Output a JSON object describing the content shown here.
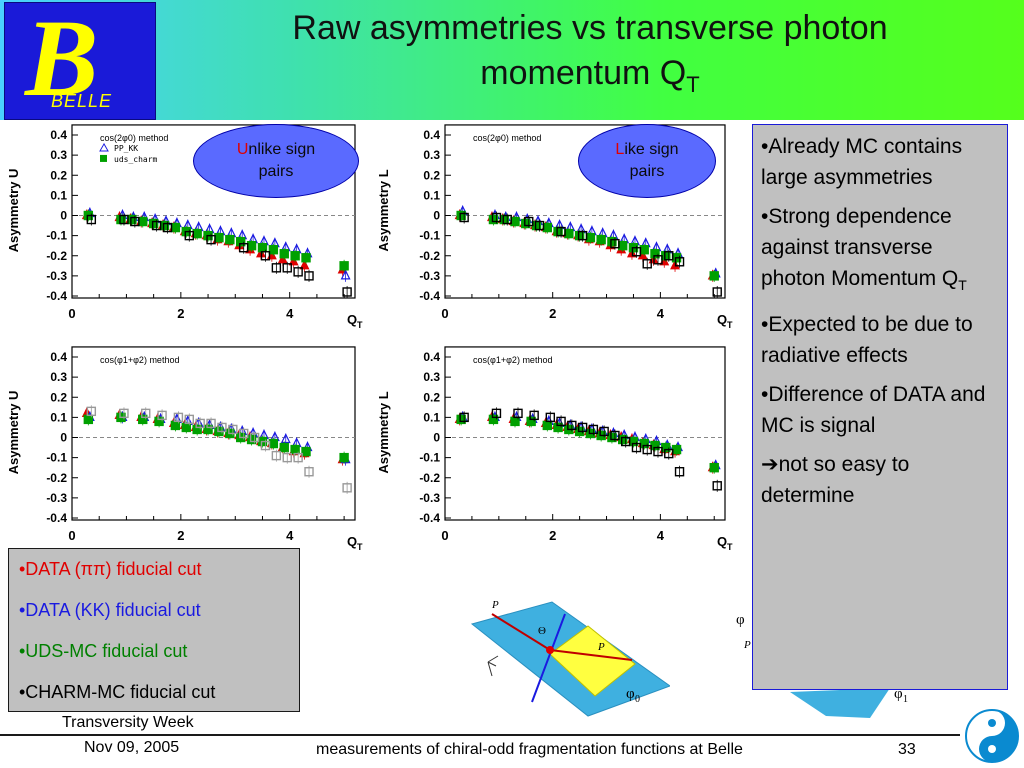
{
  "header": {
    "logo_text": "BELLE",
    "title_line1": "Raw asymmetries vs transverse photon",
    "title_line2": "momentum Q",
    "title_sub": "T"
  },
  "bubbles": {
    "unlike": {
      "first": "U",
      "rest_line1": "nlike sign",
      "line2": "pairs"
    },
    "like": {
      "first": "L",
      "rest_line1": "ike sign",
      "line2": "pairs"
    }
  },
  "right_box": {
    "bullets": [
      "•Already MC contains large asymmetries",
      "•Strong dependence against transverse photon Momentum Q",
      "•Expected to be due to radiative effects",
      "•Difference of DATA and MC is signal",
      "not so easy to determine"
    ],
    "qt_sub": "T",
    "arrow": "➔"
  },
  "legend_box": {
    "items": [
      {
        "label": "•DATA (ππ)   fiducial cut",
        "color": "#e00000"
      },
      {
        "label": "•DATA (KK)  fiducial cut",
        "color": "#1a1ae0"
      },
      {
        "label": "•UDS-MC      fiducial cut",
        "color": "#008000"
      },
      {
        "label": "•CHARM-MC fiducial cut",
        "color": "#000000"
      }
    ]
  },
  "footer": {
    "conference": "Transversity Week",
    "date": "Nov 09, 2005",
    "talk": "measurements of chiral-odd fragmentation functions at Belle",
    "page": "33"
  },
  "diagram": {
    "p_h2": "P",
    "p_h1": "P",
    "theta": "Θ",
    "phi0": "φ",
    "phi0_sub": "0",
    "phi1": "φ",
    "phi1_sub": "1",
    "phi2_partial": "φ",
    "p_partial": "P"
  },
  "colors": {
    "data_pipi": "#e00000",
    "data_kk": "#1a1ae0",
    "uds_mc": "#00a000",
    "charm_mc": "#000000"
  },
  "chart_data": [
    {
      "type": "scatter",
      "annotation": "cos(2φ0) method",
      "legend": [
        "PP_KK",
        "uds_charm"
      ],
      "xlabel": "Q",
      "xlabel_sub": "T",
      "ylabel": "Asymmetry U",
      "xlim": [
        0,
        5.2
      ],
      "ylim": [
        -0.4,
        0.45
      ],
      "xticks": [
        0,
        2,
        4
      ],
      "yticks": [
        0.4,
        0.3,
        0.2,
        0.1,
        0,
        -0.1,
        -0.2,
        -0.3,
        -0.4
      ],
      "series": [
        {
          "name": "DATA ππ",
          "marker": "triangle-filled",
          "color": "#e00000",
          "x": [
            0.3,
            0.9,
            1.1,
            1.3,
            1.5,
            1.7,
            1.9,
            2.1,
            2.3,
            2.5,
            2.7,
            2.9,
            3.1,
            3.3,
            3.5,
            3.7,
            3.9,
            4.1,
            4.3,
            5.0
          ],
          "y": [
            0.0,
            -0.01,
            -0.02,
            -0.03,
            -0.04,
            -0.05,
            -0.06,
            -0.08,
            -0.09,
            -0.1,
            -0.12,
            -0.13,
            -0.15,
            -0.17,
            -0.19,
            -0.2,
            -0.22,
            -0.23,
            -0.25,
            -0.27
          ]
        },
        {
          "name": "DATA KK",
          "marker": "triangle-open",
          "color": "#1a1ae0",
          "x": [
            0.3,
            0.9,
            1.1,
            1.3,
            1.5,
            1.7,
            1.9,
            2.1,
            2.3,
            2.5,
            2.7,
            2.9,
            3.1,
            3.3,
            3.5,
            3.7,
            3.9,
            4.1,
            4.3,
            5.0
          ],
          "y": [
            0.01,
            0.0,
            -0.01,
            -0.01,
            -0.02,
            -0.03,
            -0.04,
            -0.05,
            -0.06,
            -0.07,
            -0.08,
            -0.09,
            -0.1,
            -0.12,
            -0.13,
            -0.14,
            -0.16,
            -0.17,
            -0.19,
            -0.3
          ]
        },
        {
          "name": "UDS-MC",
          "marker": "square-filled",
          "color": "#00a000",
          "x": [
            0.3,
            0.9,
            1.1,
            1.3,
            1.5,
            1.7,
            1.9,
            2.1,
            2.3,
            2.5,
            2.7,
            2.9,
            3.1,
            3.3,
            3.5,
            3.7,
            3.9,
            4.1,
            4.3,
            5.0
          ],
          "y": [
            0.0,
            -0.02,
            -0.02,
            -0.03,
            -0.04,
            -0.05,
            -0.06,
            -0.08,
            -0.09,
            -0.1,
            -0.11,
            -0.12,
            -0.13,
            -0.15,
            -0.16,
            -0.17,
            -0.19,
            -0.2,
            -0.21,
            -0.25
          ]
        },
        {
          "name": "CHARM-MC",
          "marker": "square-open",
          "color": "#000000",
          "x": [
            0.3,
            0.9,
            1.1,
            1.5,
            1.7,
            2.1,
            2.5,
            3.1,
            3.5,
            3.7,
            3.9,
            4.1,
            4.3,
            5.0
          ],
          "y": [
            -0.02,
            -0.02,
            -0.03,
            -0.05,
            -0.06,
            -0.1,
            -0.12,
            -0.16,
            -0.2,
            -0.26,
            -0.26,
            -0.28,
            -0.3,
            -0.38
          ]
        }
      ]
    },
    {
      "type": "scatter",
      "annotation": "cos(2φ0) method",
      "xlabel": "Q",
      "xlabel_sub": "T",
      "ylabel": "Asymmetry L",
      "xlim": [
        0,
        5.2
      ],
      "ylim": [
        -0.4,
        0.45
      ],
      "xticks": [
        0,
        2,
        4
      ],
      "yticks": [
        0.4,
        0.3,
        0.2,
        0.1,
        0,
        -0.1,
        -0.2,
        -0.3,
        -0.4
      ],
      "series": [
        {
          "name": "DATA ππ",
          "marker": "triangle-filled",
          "color": "#e00000",
          "x": [
            0.3,
            0.9,
            1.1,
            1.3,
            1.5,
            1.7,
            1.9,
            2.1,
            2.3,
            2.5,
            2.7,
            2.9,
            3.1,
            3.3,
            3.5,
            3.7,
            3.9,
            4.1,
            4.3,
            5.0
          ],
          "y": [
            0.0,
            -0.01,
            -0.02,
            -0.03,
            -0.04,
            -0.05,
            -0.06,
            -0.08,
            -0.09,
            -0.1,
            -0.12,
            -0.13,
            -0.15,
            -0.17,
            -0.19,
            -0.2,
            -0.22,
            -0.23,
            -0.25,
            -0.3
          ]
        },
        {
          "name": "DATA KK",
          "marker": "triangle-open",
          "color": "#1a1ae0",
          "x": [
            0.3,
            0.9,
            1.1,
            1.3,
            1.5,
            1.7,
            1.9,
            2.1,
            2.3,
            2.5,
            2.7,
            2.9,
            3.1,
            3.3,
            3.5,
            3.7,
            3.9,
            4.1,
            4.3,
            5.0
          ],
          "y": [
            0.02,
            0.0,
            -0.01,
            -0.01,
            -0.02,
            -0.03,
            -0.04,
            -0.05,
            -0.06,
            -0.07,
            -0.08,
            -0.09,
            -0.1,
            -0.12,
            -0.13,
            -0.14,
            -0.16,
            -0.17,
            -0.19,
            -0.29
          ]
        },
        {
          "name": "UDS-MC",
          "marker": "square-filled",
          "color": "#00a000",
          "x": [
            0.3,
            0.9,
            1.1,
            1.3,
            1.5,
            1.7,
            1.9,
            2.1,
            2.3,
            2.5,
            2.7,
            2.9,
            3.1,
            3.3,
            3.5,
            3.7,
            3.9,
            4.1,
            4.3,
            5.0
          ],
          "y": [
            0.0,
            -0.02,
            -0.02,
            -0.03,
            -0.04,
            -0.05,
            -0.06,
            -0.08,
            -0.09,
            -0.1,
            -0.11,
            -0.12,
            -0.13,
            -0.15,
            -0.16,
            -0.17,
            -0.19,
            -0.2,
            -0.21,
            -0.3
          ]
        },
        {
          "name": "CHARM-MC",
          "marker": "square-open",
          "color": "#000000",
          "x": [
            0.3,
            0.9,
            1.1,
            1.5,
            1.7,
            2.1,
            2.5,
            3.1,
            3.5,
            3.7,
            3.9,
            4.1,
            4.3,
            5.0
          ],
          "y": [
            -0.01,
            -0.01,
            -0.02,
            -0.03,
            -0.05,
            -0.08,
            -0.1,
            -0.14,
            -0.18,
            -0.24,
            -0.22,
            -0.2,
            -0.23,
            -0.38
          ]
        }
      ]
    },
    {
      "type": "scatter",
      "annotation": "cos(φ1+φ2) method",
      "xlabel": "Q",
      "xlabel_sub": "T",
      "ylabel": "Asymmetry U",
      "xlim": [
        0,
        5.2
      ],
      "ylim": [
        -0.4,
        0.45
      ],
      "xticks": [
        0,
        2,
        4
      ],
      "yticks": [
        0.4,
        0.3,
        0.2,
        0.1,
        0,
        -0.1,
        -0.2,
        -0.3,
        -0.4
      ],
      "series": [
        {
          "name": "DATA ππ",
          "marker": "triangle-filled",
          "color": "#e00000",
          "x": [
            0.3,
            0.9,
            1.3,
            1.6,
            1.9,
            2.1,
            2.3,
            2.5,
            2.7,
            2.9,
            3.1,
            3.3,
            3.5,
            3.7,
            3.9,
            4.1,
            4.3,
            5.0
          ],
          "y": [
            0.12,
            0.11,
            0.1,
            0.09,
            0.07,
            0.06,
            0.05,
            0.04,
            0.03,
            0.02,
            0.01,
            0.0,
            -0.02,
            -0.03,
            -0.05,
            -0.07,
            -0.08,
            -0.11
          ]
        },
        {
          "name": "DATA KK",
          "marker": "triangle-open",
          "color": "#1a1ae0",
          "x": [
            0.3,
            0.9,
            1.3,
            1.6,
            1.9,
            2.1,
            2.3,
            2.5,
            2.7,
            2.9,
            3.1,
            3.3,
            3.5,
            3.7,
            3.9,
            4.1,
            4.3,
            5.0
          ],
          "y": [
            0.1,
            0.1,
            0.1,
            0.09,
            0.09,
            0.08,
            0.07,
            0.06,
            0.05,
            0.04,
            0.03,
            0.02,
            0.01,
            0.0,
            -0.01,
            -0.03,
            -0.05,
            -0.11
          ]
        },
        {
          "name": "UDS-MC",
          "marker": "square-filled",
          "color": "#00a000",
          "x": [
            0.3,
            0.9,
            1.3,
            1.6,
            1.9,
            2.1,
            2.3,
            2.5,
            2.7,
            2.9,
            3.1,
            3.3,
            3.5,
            3.7,
            3.9,
            4.1,
            4.3,
            5.0
          ],
          "y": [
            0.09,
            0.1,
            0.09,
            0.08,
            0.06,
            0.05,
            0.04,
            0.04,
            0.03,
            0.02,
            0.0,
            -0.01,
            -0.02,
            -0.03,
            -0.05,
            -0.06,
            -0.07,
            -0.1
          ]
        },
        {
          "name": "CHARM-MC",
          "marker": "square-open",
          "color": "#999999",
          "x": [
            0.3,
            0.9,
            1.3,
            1.6,
            1.9,
            2.1,
            2.3,
            2.5,
            2.7,
            2.9,
            3.1,
            3.3,
            3.5,
            3.7,
            3.9,
            4.1,
            4.3,
            5.0
          ],
          "y": [
            0.13,
            0.12,
            0.12,
            0.11,
            0.1,
            0.09,
            0.07,
            0.07,
            0.05,
            0.04,
            0.02,
            0.0,
            -0.04,
            -0.09,
            -0.1,
            -0.1,
            -0.17,
            -0.25
          ]
        }
      ]
    },
    {
      "type": "scatter",
      "annotation": "cos(φ1+φ2) method",
      "xlabel": "Q",
      "xlabel_sub": "T",
      "ylabel": "Asymmetry L",
      "xlim": [
        0,
        5.2
      ],
      "ylim": [
        -0.4,
        0.45
      ],
      "xticks": [
        0,
        2,
        4
      ],
      "yticks": [
        0.4,
        0.3,
        0.2,
        0.1,
        0,
        -0.1,
        -0.2,
        -0.3,
        -0.4
      ],
      "series": [
        {
          "name": "DATA ππ",
          "marker": "triangle-filled",
          "color": "#e00000",
          "x": [
            0.3,
            0.9,
            1.3,
            1.6,
            1.9,
            2.1,
            2.3,
            2.5,
            2.7,
            2.9,
            3.1,
            3.3,
            3.5,
            3.7,
            3.9,
            4.1,
            4.3,
            5.0
          ],
          "y": [
            0.09,
            0.1,
            0.09,
            0.08,
            0.07,
            0.06,
            0.05,
            0.04,
            0.03,
            0.02,
            0.01,
            0.0,
            -0.01,
            -0.03,
            -0.04,
            -0.06,
            -0.07,
            -0.15
          ]
        },
        {
          "name": "DATA KK",
          "marker": "triangle-open",
          "color": "#1a1ae0",
          "x": [
            0.3,
            0.9,
            1.3,
            1.6,
            1.9,
            2.1,
            2.3,
            2.5,
            2.7,
            2.9,
            3.1,
            3.3,
            3.5,
            3.7,
            3.9,
            4.1,
            4.3,
            5.0
          ],
          "y": [
            0.1,
            0.1,
            0.1,
            0.09,
            0.08,
            0.07,
            0.06,
            0.05,
            0.04,
            0.03,
            0.02,
            0.01,
            0.0,
            -0.01,
            -0.02,
            -0.04,
            -0.05,
            -0.14
          ]
        },
        {
          "name": "UDS-MC",
          "marker": "square-filled",
          "color": "#00a000",
          "x": [
            0.3,
            0.9,
            1.3,
            1.6,
            1.9,
            2.1,
            2.3,
            2.5,
            2.7,
            2.9,
            3.1,
            3.3,
            3.5,
            3.7,
            3.9,
            4.1,
            4.3,
            5.0
          ],
          "y": [
            0.09,
            0.09,
            0.08,
            0.08,
            0.06,
            0.05,
            0.04,
            0.03,
            0.02,
            0.01,
            0.0,
            -0.01,
            -0.02,
            -0.03,
            -0.04,
            -0.05,
            -0.06,
            -0.15
          ]
        },
        {
          "name": "CHARM-MC",
          "marker": "square-open",
          "color": "#000000",
          "x": [
            0.3,
            0.9,
            1.3,
            1.6,
            1.9,
            2.1,
            2.3,
            2.5,
            2.7,
            2.9,
            3.1,
            3.3,
            3.5,
            3.7,
            3.9,
            4.1,
            4.3,
            5.0
          ],
          "y": [
            0.1,
            0.12,
            0.12,
            0.11,
            0.1,
            0.08,
            0.06,
            0.05,
            0.04,
            0.03,
            0.01,
            -0.02,
            -0.05,
            -0.06,
            -0.07,
            -0.08,
            -0.17,
            -0.24
          ]
        }
      ]
    }
  ]
}
